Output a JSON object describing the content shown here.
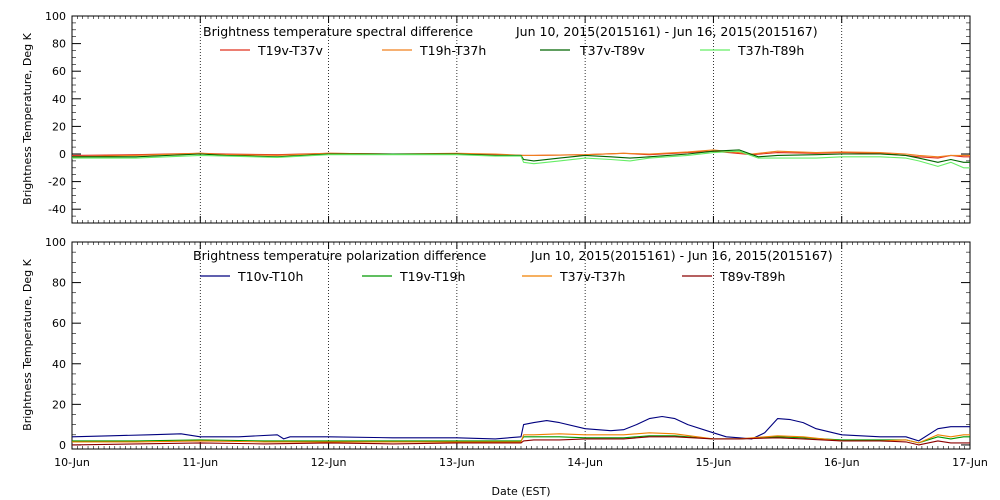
{
  "chart_data": [
    {
      "type": "line",
      "title": "Brightness temperature spectral difference",
      "date_range": "Jun 10, 2015(2015161) - Jun 16, 2015(2015167)",
      "ylabel": "Brightness Temperature, Deg K",
      "xlabel": "",
      "ylim": [
        -50,
        100
      ],
      "yticks": [
        -40,
        -20,
        0,
        20,
        40,
        60,
        80,
        100
      ],
      "x_range_days": [
        0,
        7
      ],
      "xticks": [],
      "grid": "vertical dotted at day boundaries",
      "legend_position": "top",
      "series": [
        {
          "name": "T19v-T37v",
          "color": "#e0301e",
          "x": [
            0,
            0.5,
            1,
            1.2,
            1.6,
            2,
            2.5,
            3,
            3.3,
            3.52,
            3.6,
            4,
            4.3,
            4.5,
            4.8,
            5,
            5.3,
            5.5,
            5.8,
            6,
            6.3,
            6.5,
            6.6,
            6.75,
            6.85,
            6.95,
            7
          ],
          "values": [
            -1,
            -0.5,
            0.5,
            0,
            -0.5,
            0.5,
            0,
            0,
            -0.5,
            -1,
            -1,
            -0.5,
            0.5,
            -0.5,
            1,
            2,
            -0.5,
            1,
            0.5,
            1,
            0.5,
            -1,
            -2,
            -3,
            -1,
            -2,
            -2
          ]
        },
        {
          "name": "T19h-T37h",
          "color": "#f0801e",
          "x": [
            0,
            0.5,
            1,
            1.2,
            1.6,
            2,
            2.5,
            3,
            3.3,
            3.52,
            3.6,
            4,
            4.3,
            4.5,
            4.8,
            5,
            5.3,
            5.5,
            5.8,
            6,
            6.3,
            6.5,
            6.6,
            6.75,
            6.85,
            6.95,
            7
          ],
          "values": [
            -2,
            -1,
            0.5,
            -0.5,
            -1,
            0.5,
            0,
            0.5,
            0,
            -1,
            -1,
            -0.5,
            0.5,
            0,
            1.5,
            3,
            0,
            2,
            1,
            1.5,
            1,
            0,
            -1,
            -2,
            -1,
            -1,
            -1
          ]
        },
        {
          "name": "T37v-T89v",
          "color": "#006400",
          "x": [
            0,
            0.5,
            1,
            1.2,
            1.6,
            2,
            2.5,
            3,
            3.3,
            3.5,
            3.52,
            3.6,
            3.8,
            4,
            4.2,
            4.35,
            4.5,
            4.8,
            5,
            5.2,
            5.35,
            5.5,
            5.8,
            6,
            6.3,
            6.5,
            6.6,
            6.75,
            6.85,
            6.95,
            7
          ],
          "values": [
            -2,
            -2,
            0,
            -1,
            -2,
            0,
            0,
            0,
            -1,
            -1,
            -4,
            -5,
            -3,
            -1,
            -2,
            -3,
            -2,
            0,
            2,
            3,
            -2,
            -1,
            -0.5,
            0,
            0,
            -1,
            -3,
            -6,
            -4,
            -6,
            -6
          ]
        },
        {
          "name": "T37h-T89h",
          "color": "#66ee66",
          "x": [
            0,
            0.5,
            1,
            1.2,
            1.6,
            2,
            2.5,
            3,
            3.3,
            3.5,
            3.52,
            3.6,
            3.8,
            4,
            4.2,
            4.35,
            4.5,
            4.8,
            5,
            5.2,
            5.35,
            5.5,
            5.8,
            6,
            6.3,
            6.5,
            6.6,
            6.75,
            6.85,
            6.95,
            7
          ],
          "values": [
            -3,
            -3,
            -1,
            -1.5,
            -2.5,
            -0.5,
            -0.5,
            -0.5,
            -1.5,
            -1.5,
            -6,
            -7,
            -5,
            -3,
            -4,
            -5,
            -3,
            -1,
            1,
            2,
            -3,
            -3,
            -3,
            -2,
            -2,
            -3,
            -5,
            -9,
            -6,
            -10,
            -10
          ]
        }
      ]
    },
    {
      "type": "line",
      "title": "Brightness temperature polarization difference",
      "date_range": "Jun 10, 2015(2015161) - Jun 16, 2015(2015167)",
      "ylabel": "Brightness Temperature, Deg K",
      "xlabel": "Date (EST)",
      "ylim": [
        -2,
        100
      ],
      "yticks": [
        0,
        20,
        40,
        60,
        80,
        100
      ],
      "x_range_days": [
        0,
        7
      ],
      "xticks": [
        "10-Jun",
        "11-Jun",
        "12-Jun",
        "13-Jun",
        "14-Jun",
        "15-Jun",
        "16-Jun",
        "17-Jun"
      ],
      "grid": "vertical dotted at day boundaries",
      "legend_position": "top",
      "series": [
        {
          "name": "T10v-T10h",
          "color": "#00007f",
          "x": [
            0,
            0.3,
            0.6,
            0.85,
            1,
            1.3,
            1.6,
            1.65,
            1.7,
            2,
            2.5,
            3,
            3.3,
            3.5,
            3.52,
            3.6,
            3.7,
            3.8,
            4,
            4.2,
            4.3,
            4.4,
            4.5,
            4.6,
            4.7,
            4.8,
            5,
            5.1,
            5.2,
            5.3,
            5.4,
            5.5,
            5.6,
            5.7,
            5.8,
            6,
            6.3,
            6.5,
            6.6,
            6.75,
            6.85,
            6.95,
            7
          ],
          "values": [
            4,
            4.5,
            5,
            5.5,
            4,
            4,
            5,
            3,
            4,
            4,
            3.5,
            3.5,
            3,
            4,
            10,
            11,
            12,
            11,
            8,
            7,
            7.5,
            10,
            13,
            14,
            13,
            10,
            6,
            4,
            3.5,
            3,
            6,
            13,
            12.5,
            11,
            8,
            5,
            4,
            4,
            2,
            8,
            9,
            9,
            9
          ]
        },
        {
          "name": "T19v-T19h",
          "color": "#009900",
          "x": [
            0,
            0.5,
            1,
            1.5,
            2,
            2.5,
            3,
            3.5,
            3.52,
            3.6,
            3.8,
            4,
            4.3,
            4.5,
            4.7,
            5,
            5.2,
            5.5,
            5.7,
            6,
            6.3,
            6.5,
            6.6,
            6.75,
            6.85,
            6.95,
            7
          ],
          "values": [
            2,
            2,
            2.5,
            2,
            2,
            2,
            2,
            2,
            4,
            4,
            4,
            3.5,
            3.5,
            4.5,
            4.5,
            3,
            3,
            4,
            3.5,
            2.5,
            2.5,
            2.5,
            1,
            4,
            3,
            4,
            4
          ]
        },
        {
          "name": "T37v-T37h",
          "color": "#f08000",
          "x": [
            0,
            0.5,
            1,
            1.5,
            2,
            2.5,
            3,
            3.5,
            3.52,
            3.6,
            3.8,
            4,
            4.3,
            4.5,
            4.7,
            5,
            5.2,
            5.5,
            5.7,
            6,
            6.3,
            6.5,
            6.6,
            6.75,
            6.85,
            6.95,
            7
          ],
          "values": [
            1.5,
            1.5,
            2,
            1.5,
            1.5,
            1.5,
            1.5,
            1.5,
            5,
            5,
            5.5,
            5,
            5,
            6,
            5.5,
            3,
            3,
            4.5,
            4,
            2,
            2,
            2.5,
            1,
            5,
            4,
            5,
            5
          ]
        },
        {
          "name": "T89v-T89h",
          "color": "#8b0000",
          "x": [
            0,
            0.5,
            1,
            1.5,
            2,
            2.5,
            3,
            3.5,
            3.52,
            3.6,
            3.8,
            4,
            4.3,
            4.5,
            4.7,
            5,
            5.2,
            5.5,
            5.7,
            6,
            6.3,
            6.5,
            6.6,
            6.75,
            6.85,
            6.95,
            7
          ],
          "values": [
            0,
            0.5,
            1,
            0.5,
            1,
            0.5,
            1,
            1,
            2,
            2.5,
            2.5,
            3,
            3,
            4,
            4,
            3,
            3,
            3.5,
            3,
            2,
            2,
            1.5,
            0,
            2,
            1,
            1,
            1
          ]
        }
      ]
    }
  ]
}
